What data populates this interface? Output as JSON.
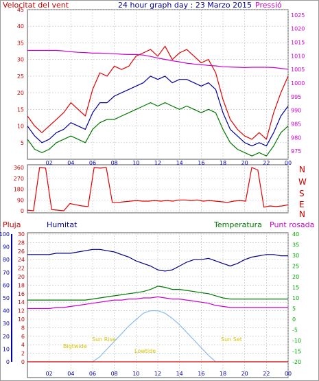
{
  "colors": {
    "red": "#e00000",
    "blue": "#000099",
    "navy": "#000080",
    "green": "#007700",
    "magenta": "#cc00cc",
    "gold": "#d4c400",
    "sky": "#88bbee",
    "grid": "#bfbfbf",
    "axisRed": "#cc0000",
    "axisBlue": "#0000aa",
    "axisGreen": "#00aa00",
    "axisMagenta": "#cc00cc"
  },
  "header": {
    "wind_label": "Velocitat del vent",
    "title": "24 hour graph day : 23 Marzo 2015",
    "pressure_label": "Pressió"
  },
  "compass": [
    "N",
    "W",
    "S",
    "E",
    "N"
  ],
  "lower_labels": {
    "rain": "Pluja",
    "humidity": "Humitat",
    "temperature": "Temperatura",
    "dewpoint": "Punt rosada"
  },
  "annotations": {
    "twilight_start": "Bigtwide",
    "sunrise": "Sun Rise",
    "low_tide": "Lowtide",
    "sunset": "Sun Set"
  },
  "chart_data": [
    {
      "type": "line",
      "id": "wind_pressure",
      "x_ticks": [
        "02",
        "04",
        "06",
        "08",
        "10",
        "12",
        "14",
        "16",
        "18",
        "20",
        "22",
        "00"
      ],
      "y_left_ticks": [
        5,
        10,
        15,
        20,
        25,
        30,
        35,
        40,
        45
      ],
      "y_left_range": [
        0,
        45
      ],
      "y_right_ticks": [
        975,
        980,
        985,
        990,
        995,
        1000,
        1005,
        1010,
        1015,
        1020,
        1025
      ],
      "y_right_range": [
        972,
        1027
      ],
      "series": [
        {
          "key": "gust",
          "color": "red",
          "axis": "left",
          "values": [
            13,
            10,
            8,
            10,
            12,
            14,
            17,
            15,
            13,
            21,
            26,
            25,
            28,
            27,
            28,
            31,
            32,
            33,
            31,
            34,
            30,
            32,
            33,
            31,
            29,
            30,
            26,
            18,
            12,
            9,
            7,
            6,
            8,
            6,
            14,
            20,
            25
          ]
        },
        {
          "key": "wind_avg",
          "color": "blue",
          "axis": "left",
          "values": [
            10,
            7,
            5,
            6,
            8,
            9,
            11,
            10,
            9,
            14,
            17,
            17,
            19,
            20,
            21,
            22,
            23,
            25,
            24,
            25,
            23,
            24,
            24,
            23,
            22,
            23,
            21,
            14,
            9,
            7,
            5,
            4,
            5,
            4,
            8,
            13,
            16
          ]
        },
        {
          "key": "wind_min",
          "color": "green",
          "axis": "left",
          "values": [
            6,
            3,
            2,
            3,
            5,
            6,
            7,
            6,
            5,
            9,
            11,
            12,
            12,
            13,
            14,
            15,
            16,
            17,
            16,
            17,
            16,
            15,
            16,
            15,
            14,
            15,
            14,
            9,
            5,
            3,
            2,
            1,
            2,
            1,
            4,
            8,
            10
          ]
        },
        {
          "key": "pressure",
          "color": "magenta",
          "axis": "right",
          "values": [
            1012,
            1012,
            1012,
            1012,
            1012,
            1011.8,
            1011.5,
            1011.3,
            1011.2,
            1011,
            1011,
            1010.9,
            1010.8,
            1010.6,
            1010.5,
            1010.5,
            1010.3,
            1009.8,
            1009.2,
            1008.7,
            1008.2,
            1007.8,
            1007.3,
            1007,
            1006.8,
            1006.5,
            1006.3,
            1006,
            1005.9,
            1005.8,
            1005.7,
            1005.8,
            1005.8,
            1005.8,
            1005.7,
            1005.4,
            1005.1
          ]
        }
      ]
    },
    {
      "type": "line",
      "id": "wind_direction",
      "y_ticks": [
        0,
        90,
        180,
        270,
        360
      ],
      "y_range": [
        0,
        360
      ],
      "series": [
        {
          "key": "direction",
          "color": "red",
          "values": [
            5,
            0,
            360,
            355,
            10,
            5,
            0,
            60,
            50,
            40,
            35,
            360,
            355,
            360,
            70,
            70,
            75,
            80,
            85,
            80,
            80,
            85,
            80,
            85,
            80,
            90,
            90,
            85,
            90,
            80,
            85,
            80,
            75,
            70,
            80,
            85,
            80,
            360,
            340,
            30,
            40,
            35,
            40,
            50
          ]
        }
      ]
    },
    {
      "type": "line",
      "id": "temp_hum_dew_solar",
      "y_rain_ticks": [
        0,
        2,
        4,
        6,
        8,
        10,
        12,
        14,
        16,
        18,
        20,
        22,
        24,
        26,
        28,
        30
      ],
      "y_rain_range": [
        0,
        30
      ],
      "y_hum_ticks": [
        0,
        10,
        20,
        30,
        40,
        50,
        60,
        70,
        80,
        90,
        100
      ],
      "y_hum_range": [
        0,
        100
      ],
      "y_temp_ticks": [
        -20,
        -15,
        -10,
        -5,
        0,
        5,
        10,
        15,
        20,
        25,
        30,
        35,
        40
      ],
      "y_temp_range": [
        -20,
        40
      ],
      "series": [
        {
          "key": "humidity",
          "color": "navy",
          "axis": "hum",
          "values": [
            84,
            84,
            84,
            84,
            85,
            85,
            85,
            86,
            87,
            88,
            88,
            87,
            86,
            84,
            82,
            79,
            77,
            75,
            72,
            71,
            72,
            75,
            78,
            80,
            80,
            81,
            79,
            77,
            75,
            77,
            80,
            82,
            83,
            84,
            84,
            83,
            83
          ]
        },
        {
          "key": "temperature",
          "color": "green",
          "axis": "temp",
          "values": [
            9,
            9,
            9,
            9,
            9,
            9,
            9,
            9,
            9,
            9.5,
            10,
            10.5,
            11,
            11.5,
            12,
            12.5,
            13,
            14,
            15.5,
            15,
            14,
            14,
            13.5,
            13,
            12.5,
            12,
            11,
            10,
            9.5,
            9.5,
            9.5,
            9.5,
            9.5,
            9.5,
            9.5,
            9.5,
            9.5
          ]
        },
        {
          "key": "dewpoint",
          "color": "magenta",
          "axis": "temp",
          "values": [
            5,
            5,
            5,
            5,
            5.5,
            5.5,
            6,
            6.5,
            7,
            7.5,
            8,
            8.5,
            9,
            9,
            9.5,
            9.5,
            10,
            10,
            10.5,
            10,
            9.5,
            9.5,
            9,
            8.5,
            8,
            7.5,
            6.5,
            6,
            5.5,
            5.5,
            5.5,
            5.5,
            5.5,
            5.5,
            5.5,
            5.5,
            5.5
          ]
        },
        {
          "key": "solar",
          "color": "sky",
          "axis": "hum",
          "values": [
            0,
            0,
            0,
            0,
            0,
            0,
            0,
            0,
            0,
            0,
            4,
            10,
            16,
            22,
            28,
            33,
            38,
            40,
            40,
            38,
            34,
            29,
            23,
            17,
            11,
            5,
            0,
            0,
            0,
            0,
            0,
            0,
            0,
            0,
            0,
            0,
            0
          ]
        },
        {
          "key": "rain",
          "color": "red",
          "axis": "rain",
          "values": [
            0,
            0,
            0,
            0,
            0,
            0,
            0,
            0,
            0,
            0,
            0,
            0,
            0,
            0,
            0,
            0,
            0,
            0,
            0,
            0,
            0,
            0,
            0,
            0,
            0,
            0,
            0,
            0,
            0,
            0,
            0,
            0,
            0,
            0,
            0,
            0,
            0
          ]
        }
      ]
    }
  ]
}
